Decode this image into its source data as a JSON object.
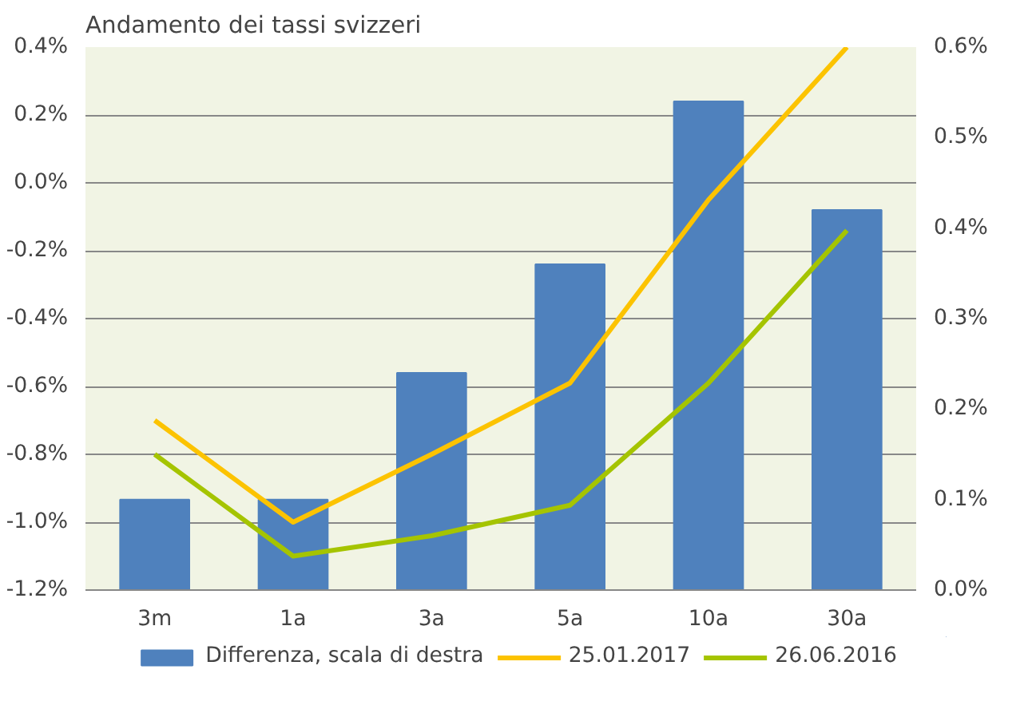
{
  "chart_data": {
    "type": "bar",
    "title": "Andamento dei tassi svizzeri",
    "categories": [
      "3m",
      "1a",
      "3a",
      "5a",
      "10a",
      "30a"
    ],
    "series": [
      {
        "name": "Differenza, scala di destra",
        "type": "bar",
        "axis": "y2",
        "color": "#4f81bd",
        "values": [
          0.1,
          0.1,
          0.24,
          0.36,
          0.54,
          0.42
        ]
      },
      {
        "name": "25.01.2017",
        "type": "line",
        "color": "#fcc300",
        "values": [
          -0.7,
          -1.0,
          -0.8,
          -0.59,
          -0.05,
          0.4
        ]
      },
      {
        "name": "26.06.2016",
        "type": "line",
        "color": "#a5c400",
        "values": [
          -0.8,
          -1.1,
          -1.04,
          -0.95,
          -0.59,
          -0.14
        ]
      }
    ],
    "ylim": [
      -1.2,
      0.4
    ],
    "yticks": [
      {
        "value": -1.2,
        "label": "-1.2%"
      },
      {
        "value": -1.0,
        "label": "-1.0%"
      },
      {
        "value": -0.8,
        "label": "-0.8%"
      },
      {
        "value": -0.6,
        "label": "-0.6%"
      },
      {
        "value": -0.4,
        "label": "-0.4%"
      },
      {
        "value": -0.2,
        "label": "-0.2%"
      },
      {
        "value": 0.0,
        "label": "0.0%"
      },
      {
        "value": 0.2,
        "label": "0.2%"
      },
      {
        "value": 0.4,
        "label": "0.4%"
      }
    ],
    "y2lim": [
      0,
      0.6
    ],
    "y2ticks": [
      {
        "value": 0,
        "label": "0.0%"
      },
      {
        "value": 0.1,
        "label": "0.1%"
      },
      {
        "value": 0.2,
        "label": "0.2%"
      },
      {
        "value": 0.3,
        "label": "0.3%"
      },
      {
        "value": 0.4,
        "label": "0.4%"
      },
      {
        "value": 0.5,
        "label": "0.5%"
      },
      {
        "value": 0.6,
        "label": "0.6%"
      }
    ],
    "grid": "y",
    "legend": "bottom",
    "marker": "none",
    "line_style": "solid"
  }
}
